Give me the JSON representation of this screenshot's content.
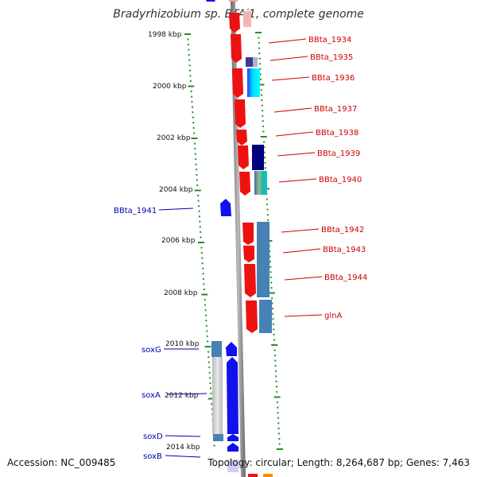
{
  "title": "Bradyrhizobium sp. BTAi1, complete genome",
  "footer": {
    "accession": "Accession: NC_009485",
    "topology": "Topology: circular; Length: 8,264,687 bp; Genes: 7,463"
  },
  "axis_labels": [
    "1998 kbp",
    "2000 kbp",
    "2002 kbp",
    "2004 kbp",
    "2006 kbp",
    "2008 kbp",
    "2010 kbp",
    "2012 kbp",
    "2014 kbp"
  ],
  "right_genes": [
    "BBta_1934",
    "BBta_1935",
    "BBta_1936",
    "BBta_1937",
    "BBta_1938",
    "BBta_1939",
    "BBta_1940",
    "BBta_1942",
    "BBta_1943",
    "BBta_1944",
    "glnA"
  ],
  "left_genes": [
    "BBta_1941",
    "soxG",
    "soxA",
    "soxD",
    "soxB"
  ],
  "colors": {
    "red_gene": "#ee1111",
    "blue_gene": "#1111ee",
    "steel": "#4682b4",
    "navy": "#000080",
    "cyan": "#00cccc",
    "tick_green": "#2a8a2a",
    "label_red": "#cc0000",
    "label_blue": "#0000aa",
    "backbone": "#888888"
  }
}
